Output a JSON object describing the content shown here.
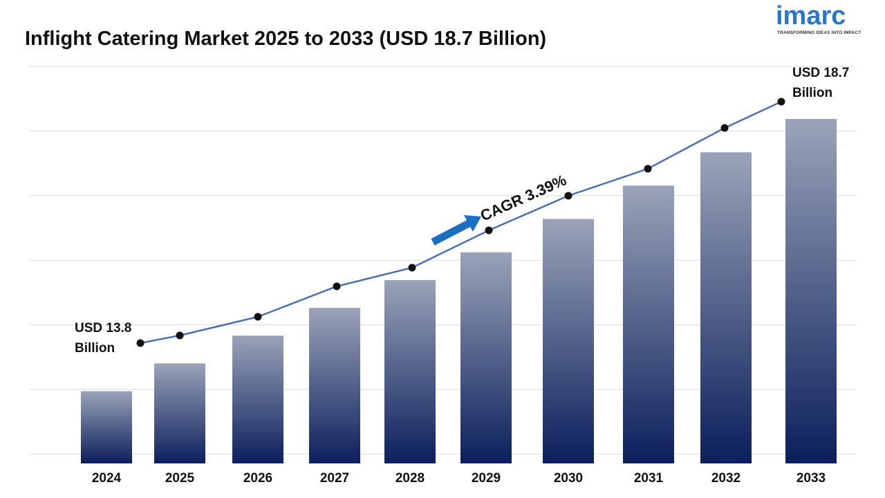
{
  "page": {
    "title": "Inflight Catering Market 2025 to 2033 (USD 18.7 Billion)"
  },
  "logo": {
    "word": "imarc",
    "tagline": "TRANSFORMING IDEAS INTO IMPACT"
  },
  "chart_data": {
    "type": "bar",
    "title": "Inflight Catering Market 2025 to 2033 (USD 18.7 Billion)",
    "categories": [
      "2024",
      "2025",
      "2026",
      "2027",
      "2028",
      "2029",
      "2030",
      "2031",
      "2032",
      "2033"
    ],
    "values": [
      13.8,
      14.3,
      14.8,
      15.3,
      15.8,
      16.3,
      16.9,
      17.5,
      18.1,
      18.7
    ],
    "unit": "USD Billion",
    "overlay_line": true,
    "grid": true,
    "annotations": {
      "start_line1": "USD 13.8",
      "start_line2": "Billion",
      "end_line1": "USD 18.7",
      "end_line2": "Billion",
      "cagr": "CAGR 3.39%"
    },
    "colors": {
      "bar_top": "#9aa3b8",
      "bar_bottom": "#0b1f5c",
      "line": "#4a6fb0",
      "marker": "#111111",
      "arrow": "#1a6fc0",
      "grid": "#d9d9d9"
    }
  }
}
